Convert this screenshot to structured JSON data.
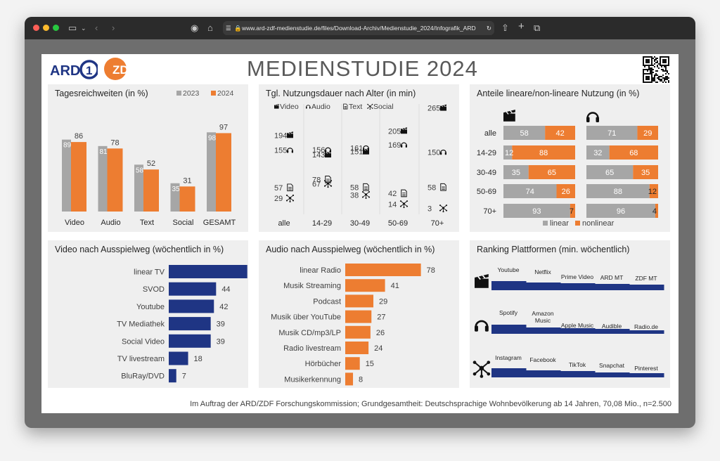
{
  "browser": {
    "url": "www.ard-zdf-medienstudie.de/files/Download-Archiv/Medienstudie_2024/Infografik_ARD"
  },
  "header": {
    "logo_ard": "ARD",
    "logo_zdf": "ZDF",
    "title": "MEDIENSTUDIE 2024"
  },
  "footer": {
    "text": "Im Auftrag der ARD/ZDF Forschungskommission; Grundgesamtheit: Deutschsprachige Wohnbevölkerung ab 14 Jahren, 70,08 Mio., n=2.500"
  },
  "colors": {
    "gray": "#a6a6a6",
    "orange": "#ed7d31",
    "navy": "#1f3584"
  },
  "panels": {
    "tagesreichweiten": {
      "title": "Tagesreichweiten (in %)",
      "legend": [
        "2023",
        "2024"
      ]
    },
    "nutzungsdauer": {
      "title": "Tgl. Nutzungsdauer nach Alter (in min)",
      "legend": [
        "Video",
        "Audio",
        "Text",
        "Social"
      ]
    },
    "anteile": {
      "title": "Anteile lineare/non-lineare Nutzung (in %)",
      "legend": [
        "linear",
        "nonlinear"
      ]
    },
    "video": {
      "title": "Video nach Ausspielweg  (wöchentlich in %)"
    },
    "audio": {
      "title": "Audio nach Ausspielweg  (wöchentlich in %)"
    },
    "ranking": {
      "title": "Ranking Plattformen (min. wöchentlich)"
    }
  },
  "chart_data": [
    {
      "type": "bar",
      "title": "Tagesreichweiten (in %)",
      "categories": [
        "Video",
        "Audio",
        "Text",
        "Social",
        "GESAMT"
      ],
      "series": [
        {
          "name": "2023",
          "values": [
            89,
            81,
            58,
            35,
            98
          ]
        },
        {
          "name": "2024",
          "values": [
            86,
            78,
            52,
            31,
            97
          ]
        }
      ],
      "ylim": [
        0,
        100
      ]
    },
    {
      "type": "scatter",
      "title": "Tgl. Nutzungsdauer nach Alter (in min)",
      "categories": [
        "alle",
        "14-29",
        "30-49",
        "50-69",
        "70+"
      ],
      "series": [
        {
          "name": "Video",
          "values": [
            194,
            143,
            151,
            205,
            265
          ]
        },
        {
          "name": "Audio",
          "values": [
            155,
            156,
            161,
            169,
            150
          ]
        },
        {
          "name": "Text",
          "values": [
            57,
            78,
            58,
            42,
            58
          ]
        },
        {
          "name": "Social",
          "values": [
            29,
            67,
            38,
            14,
            3
          ]
        }
      ],
      "ylim": [
        0,
        280
      ]
    },
    {
      "type": "bar",
      "title": "Anteile lineare/non-lineare Nutzung (in %)",
      "categories": [
        "alle",
        "14-29",
        "30-49",
        "50-69",
        "70+"
      ],
      "groups": [
        {
          "name": "Video",
          "icon": "clapperboard-icon",
          "linear": [
            58,
            12,
            35,
            74,
            93
          ],
          "nonlinear": [
            42,
            88,
            65,
            26,
            7
          ]
        },
        {
          "name": "Audio",
          "icon": "headphones-icon",
          "linear": [
            71,
            32,
            65,
            88,
            96
          ],
          "nonlinear": [
            29,
            68,
            35,
            12,
            4
          ]
        }
      ],
      "legend": [
        "linear",
        "nonlinear"
      ]
    },
    {
      "type": "bar",
      "title": "Video nach Ausspielweg  (wöchentlich in %)",
      "categories": [
        "linear TV",
        "SVOD",
        "Youtube",
        "TV Mediathek",
        "Social Video",
        "TV livestream",
        "BluRay/DVD"
      ],
      "values": [
        73,
        44,
        42,
        39,
        39,
        18,
        7
      ]
    },
    {
      "type": "bar",
      "title": "Audio nach Ausspielweg  (wöchentlich in %)",
      "categories": [
        "linear Radio",
        "Musik Streaming",
        "Podcast",
        "Musik über YouTube",
        "Musik CD/mp3/LP",
        "Radio livestream",
        "Hörbücher",
        "Musikerkennung"
      ],
      "values": [
        78,
        41,
        29,
        27,
        26,
        24,
        15,
        8
      ]
    },
    {
      "type": "bar",
      "title": "Ranking Plattformen (min. wöchentlich)",
      "groups": [
        {
          "name": "Video",
          "icon": "clapperboard-icon",
          "platforms": [
            "Youtube",
            "Netflix",
            "Prime Video",
            "ARD MT",
            "ZDF MT"
          ]
        },
        {
          "name": "Audio",
          "icon": "headphones-icon",
          "platforms": [
            "Spotify",
            "Amazon Music",
            "Apple Music",
            "Audible",
            "Radio.de"
          ]
        },
        {
          "name": "Social",
          "icon": "social-network-icon",
          "platforms": [
            "Instagram",
            "Facebook",
            "TikTok",
            "Snapchat",
            "Pinterest"
          ]
        }
      ]
    }
  ]
}
